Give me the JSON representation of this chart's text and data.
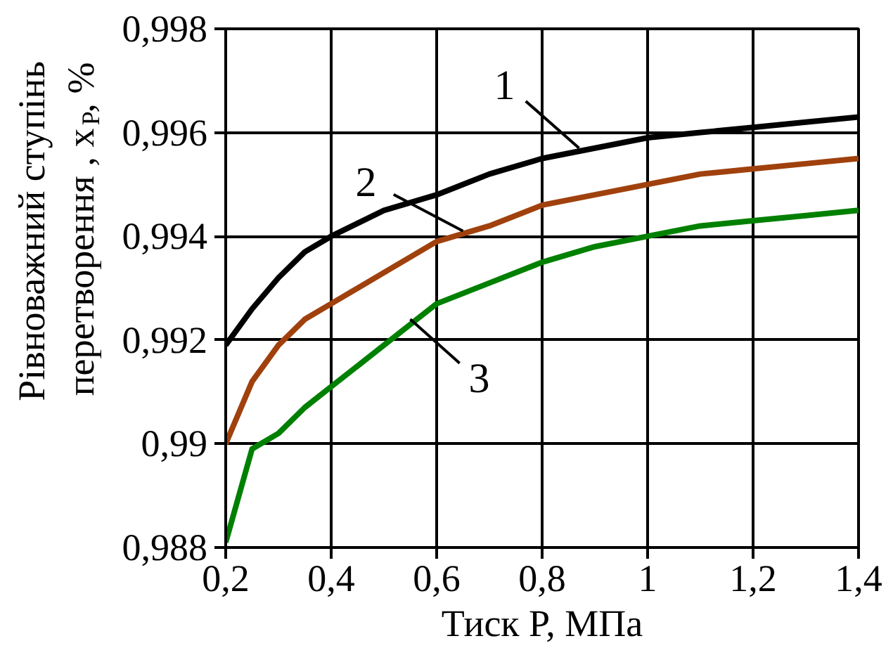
{
  "chart_data": {
    "type": "line",
    "xlabel": "Тиск P, МПа",
    "ylabel": "Рівноважний ступінь\nперетворення , x$_{P}$, %",
    "xlim": [
      0.2,
      1.4
    ],
    "ylim": [
      0.988,
      0.998
    ],
    "xticks": [
      {
        "value": 0.2,
        "label": "0,2"
      },
      {
        "value": 0.4,
        "label": "0,4"
      },
      {
        "value": 0.6,
        "label": "0,6"
      },
      {
        "value": 0.8,
        "label": "0,8"
      },
      1,
      {
        "value": 1.2,
        "label": "1,2"
      },
      {
        "value": 1.4,
        "label": "1,4"
      }
    ],
    "yticks": [
      {
        "value": 0.988,
        "label": "0,988"
      },
      {
        "value": 0.99,
        "label": "0,99"
      },
      {
        "value": 0.992,
        "label": "0,992"
      },
      {
        "value": 0.994,
        "label": "0,994"
      },
      {
        "value": 0.996,
        "label": "0,996"
      },
      {
        "value": 0.998,
        "label": "0,998"
      }
    ],
    "grid": true,
    "line_style": "solid",
    "marker": "none",
    "x": [
      0.2,
      0.25,
      0.3,
      0.35,
      0.4,
      0.5,
      0.6,
      0.7,
      0.8,
      0.9,
      1.0,
      1.1,
      1.2,
      1.3,
      1.4
    ],
    "series": [
      {
        "color": "#000000",
        "values": [
          0.9919,
          0.9926,
          0.9932,
          0.9937,
          0.994,
          0.9945,
          0.9948,
          0.9952,
          0.9955,
          0.9957,
          0.9959,
          0.996,
          0.9961,
          0.9962,
          0.9963
        ]
      },
      {
        "color": "#a0410d",
        "values": [
          0.99,
          0.9912,
          0.9919,
          0.9924,
          0.9927,
          0.9933,
          0.9939,
          0.9942,
          0.9946,
          0.9948,
          0.995,
          0.9952,
          0.9953,
          0.9954,
          0.9955
        ]
      },
      {
        "color": "#008000",
        "values": [
          0.9881,
          0.9899,
          0.9902,
          0.9907,
          0.9911,
          0.9919,
          0.9927,
          0.9931,
          0.9935,
          0.9938,
          0.994,
          0.9942,
          0.9943,
          0.9944,
          0.9945
        ]
      }
    ],
    "annotations": [
      {
        "text": "1",
        "x": 0.87,
        "y": 0.9957
      },
      {
        "text": "2",
        "x": 0.65,
        "y": 0.9941
      },
      {
        "text": "3",
        "x": 0.55,
        "y": 0.9924
      }
    ]
  }
}
